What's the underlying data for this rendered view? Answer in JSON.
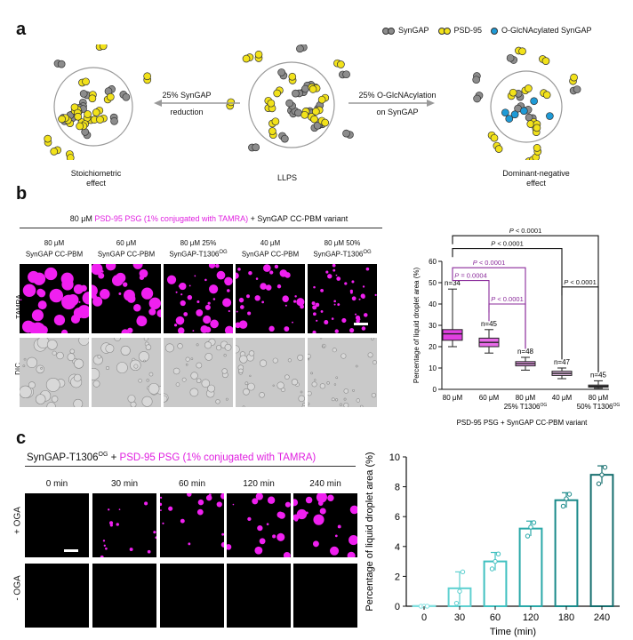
{
  "panel_a": {
    "letter": "a",
    "legend": {
      "syngap": "SynGAP",
      "psd95": "PSD-95",
      "oglc": "O-GlcNAcylated SynGAP",
      "colors": {
        "syngap": "#8c8c8c",
        "psd95": "#f2e21a",
        "oglc": "#1e9ad6",
        "tag": "#2a5a7a"
      }
    },
    "left_arrow": {
      "line1": "25% SynGAP",
      "line2": "reduction"
    },
    "right_arrow": {
      "line1": "25% O-GlcNAcylation",
      "line2": "on SynGAP"
    },
    "labels": {
      "left_line1": "Stoichiometric",
      "left_line2": "effect",
      "center": "LLPS",
      "right_line1": "Dominant-negative",
      "right_line2": "effect"
    }
  },
  "panel_b": {
    "letter": "b",
    "header_pre": "80 μM ",
    "header_mag": "PSD-95 PSG (1% conjugated with TAMRA)",
    "header_post": " + SynGAP CC-PBM variant",
    "columns": [
      {
        "line1": "80 μM",
        "line2": "SynGAP CC-PBM",
        "sup": ""
      },
      {
        "line1": "60 μM",
        "line2": "SynGAP CC-PBM",
        "sup": ""
      },
      {
        "line1": "80 μM 25%",
        "line2": "SynGAP-T1306",
        "sup": "OG"
      },
      {
        "line1": "40 μM",
        "line2": "SynGAP CC-PBM",
        "sup": ""
      },
      {
        "line1": "80 μM 50%",
        "line2": "SynGAP-T1306",
        "sup": "OG"
      }
    ],
    "row_labels": {
      "tamra": "TAMRA",
      "dic": "DIC"
    }
  },
  "panel_c": {
    "letter": "c",
    "header_pre": "SynGAP-T1306",
    "header_sup": "OG",
    "header_plus": " + ",
    "header_mag": "PSD-95 PSG (1% conjugated with TAMRA)",
    "times": [
      "0 min",
      "30 min",
      "60 min",
      "120 min",
      "240 min"
    ],
    "row_labels": {
      "plus": "+ OGA",
      "minus": "- OGA"
    }
  },
  "chart_data": [
    {
      "type": "box",
      "ylabel": "Percentage of liquid droplet area (%)",
      "xlabel": "PSD-95 PSG + SynGAP CC-PBM variant",
      "ylim": [
        0,
        60
      ],
      "yticks": [
        0,
        10,
        20,
        30,
        40,
        50,
        60
      ],
      "categories": [
        {
          "line1": "80 μM",
          "line2": "",
          "sup": ""
        },
        {
          "line1": "60 μM",
          "line2": "",
          "sup": ""
        },
        {
          "line1": "80 μM",
          "line2": "25% T1306",
          "sup": "OG"
        },
        {
          "line1": "40 μM",
          "line2": "",
          "sup": ""
        },
        {
          "line1": "80 μM",
          "line2": "50% T1306",
          "sup": "OG"
        }
      ],
      "boxes": [
        {
          "min": 20,
          "q1": 23,
          "median": 26,
          "q3": 28,
          "max": 47,
          "n": "n=34",
          "fill": "#e040e0",
          "stroke": "#222"
        },
        {
          "min": 17,
          "q1": 20,
          "median": 22,
          "q3": 24,
          "max": 28,
          "n": "n=45",
          "fill": "#e86ae8",
          "stroke": "#222"
        },
        {
          "min": 9,
          "q1": 11,
          "median": 12,
          "q3": 13,
          "max": 15,
          "n": "n=48",
          "fill": "#f0a0f0",
          "stroke": "#222"
        },
        {
          "min": 5,
          "q1": 6.5,
          "median": 7.5,
          "q3": 8.5,
          "max": 10,
          "n": "n=47",
          "fill": "#f5c8f5",
          "stroke": "#222"
        },
        {
          "min": 0.5,
          "q1": 1,
          "median": 1.5,
          "q3": 2,
          "max": 4,
          "n": "n=45",
          "fill": "#fbe6fb",
          "stroke": "#222"
        }
      ],
      "significance": [
        {
          "from": 0,
          "to": 4,
          "y": 72,
          "label_pre": "P",
          "label_post": " < 0.0001",
          "color": "#111"
        },
        {
          "from": 0,
          "to": 3,
          "y": 66,
          "label_pre": "P",
          "label_post": " < 0.0001",
          "color": "#111"
        },
        {
          "from": 0,
          "to": 2,
          "y": 57,
          "label_pre": "P",
          "label_post": " < 0.0001",
          "color": "#8a2a9a"
        },
        {
          "from": 0,
          "to": 1,
          "y": 51,
          "label_pre": "P",
          "label_post": " = 0.0004",
          "color": "#8a2a9a"
        },
        {
          "from": 1,
          "to": 2,
          "y": 40,
          "label_pre": "P",
          "label_post": " < 0.0001",
          "color": "#8a2a9a"
        },
        {
          "from": 3,
          "to": 4,
          "y": 48,
          "label_pre": "P",
          "label_post": " < 0.0001",
          "color": "#111"
        }
      ]
    },
    {
      "type": "bar",
      "ylabel": "Percentage of liquid droplet area (%)",
      "xlabel": "Time (min)",
      "ylim": [
        0,
        10
      ],
      "yticks": [
        0,
        2,
        4,
        6,
        8,
        10
      ],
      "categories": [
        "0",
        "30",
        "60",
        "120",
        "180",
        "240"
      ],
      "values": [
        0.02,
        1.2,
        3.0,
        5.2,
        7.1,
        8.8
      ],
      "errors": [
        0.05,
        1.1,
        0.6,
        0.5,
        0.5,
        0.6
      ],
      "points": [
        [
          0,
          0,
          0
        ],
        [
          0.2,
          1.0,
          2.3
        ],
        [
          2.5,
          3.0,
          3.5
        ],
        [
          4.7,
          5.3,
          5.6
        ],
        [
          6.7,
          7.2,
          7.5
        ],
        [
          8.2,
          8.8,
          9.3
        ]
      ],
      "colors": [
        "#7fe0e0",
        "#5fd0d0",
        "#40c0c0",
        "#2aa8a8",
        "#1a8a8a",
        "#156e6e"
      ]
    }
  ]
}
